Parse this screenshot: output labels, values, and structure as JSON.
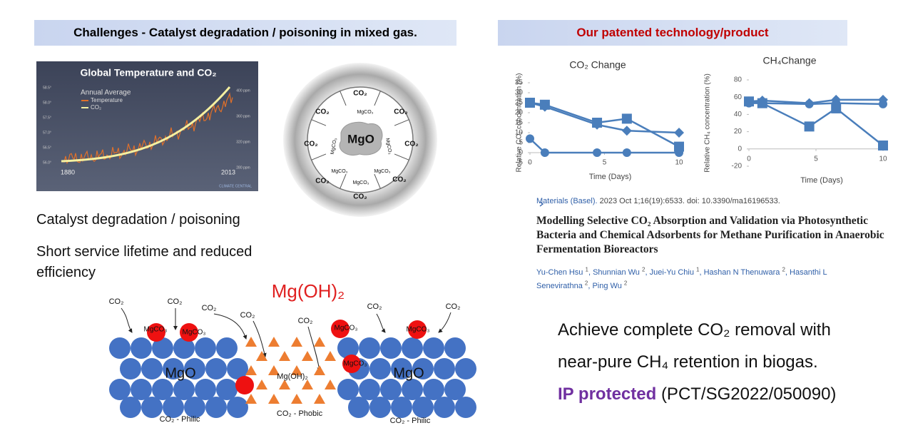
{
  "left": {
    "header": "Challenges - Catalyst degradation / poisoning in mixed gas.",
    "climate_image": {
      "title": "Global Temperature and CO₂",
      "legend_title": "Annual Average",
      "legend": [
        "Temperature",
        "CO₂"
      ],
      "x_labels": [
        "1880",
        "2013"
      ],
      "y_left_labels": [
        "58.5°",
        "58.0°",
        "57.5°",
        "57.0°",
        "56.5°",
        "56.0°"
      ],
      "y_right_labels": [
        "400 ppm",
        "360 ppm",
        "320 ppm",
        "280 ppm"
      ],
      "brand": "CLIMATE CENTRAL"
    },
    "mgo_diagram": {
      "core": "MgO",
      "co2_labels": [
        "CO₂",
        "CO₂",
        "CO₂",
        "CO₂",
        "CO₂",
        "CO₂",
        "CO₂",
        "CO₂"
      ],
      "mgco3_labels": [
        "MgCO₃",
        "MgCO₃",
        "MgCO₃",
        "MgCO₃",
        "MgCO₃",
        "MgCO₃"
      ]
    },
    "points": [
      "Catalyst degradation / poisoning",
      "Short service lifetime and reduced efficiency"
    ],
    "surface_diagram": {
      "title": "Mg(OH)₂",
      "co2_labels": [
        "CO₂",
        "CO₂",
        "CO₂",
        "CO₂",
        "CO₂",
        "CO₂",
        "CO₂"
      ],
      "mgco3_labels": [
        "MgCO₃",
        "MgCO₃",
        "MgCO₃",
        "MgCO₃",
        "MgCO₃"
      ],
      "mgo_labels": [
        "MgO",
        "MgO"
      ],
      "hydroxide_label": "Mg(OH)₂",
      "zone_labels": [
        "CO₂ - Philic",
        "CO₂ - Phobic",
        "CO₂ - Philic"
      ]
    }
  },
  "right": {
    "header": "Our patented technology/product",
    "citation": {
      "journal": "Materials (Basel).",
      "details": "2023 Oct 1;16(19):6533. doi: 10.3390/ma16196533.",
      "title": "Modelling Selective CO₂ Absorption and Validation via Photosynthetic Bacteria and Chemical Adsorbents for Methane Purification in Anaerobic Fermentation Bioreactors",
      "authors": [
        {
          "name": "Yu-Chen Hsu",
          "aff": "1"
        },
        {
          "name": "Shunnian Wu",
          "aff": "2"
        },
        {
          "name": "Juei-Yu Chiu",
          "aff": "1"
        },
        {
          "name": "Hashan N Thenuwara",
          "aff": "2"
        },
        {
          "name": "Hasanthi L Senevirathna",
          "aff": "2"
        },
        {
          "name": "Ping Wu",
          "aff": "2"
        }
      ]
    },
    "claim": {
      "lines": [
        "Achieve complete CO₂ removal with",
        "near-pure CH₄ retention in biogas."
      ],
      "ip_label": "IP protected",
      "ip_number": "(PCT/SG2022/050090)"
    }
  },
  "chart_data": [
    {
      "type": "line",
      "title": "CO₂ Change",
      "x_label": "Time (Days)",
      "y_label": "Relative CO₂ concentration (%)",
      "x": [
        0,
        1,
        4.5,
        6.5,
        10
      ],
      "xlim": [
        0,
        10
      ],
      "xticks": [
        0,
        5,
        10
      ],
      "ylim": [
        -5,
        35
      ],
      "yticks": [
        -5,
        0,
        5,
        10,
        15,
        20,
        25,
        30,
        35
      ],
      "series": [
        {
          "color": "#4a7ebb",
          "marker": "square",
          "values": [
            25,
            24,
            15,
            17,
            3
          ]
        },
        {
          "color": "#4a7ebb",
          "marker": "diamond",
          "values": [
            25,
            23,
            14,
            11,
            10
          ]
        },
        {
          "color": "#4a7ebb",
          "marker": "circle",
          "values": [
            7,
            0,
            0,
            0,
            0
          ]
        }
      ]
    },
    {
      "type": "line",
      "title": "CH₄Change",
      "x_label": "Time (Days)",
      "y_label": "Relative CH₄ concentration (%)",
      "x": [
        0,
        1,
        4.5,
        6.5,
        10
      ],
      "xlim": [
        0,
        10
      ],
      "xticks": [
        0,
        5,
        10
      ],
      "ylim": [
        -20,
        80
      ],
      "yticks": [
        -20,
        0,
        20,
        40,
        60,
        80
      ],
      "series": [
        {
          "color": "#4a7ebb",
          "marker": "diamond",
          "values": [
            55,
            56,
            53,
            57,
            57
          ]
        },
        {
          "color": "#4a7ebb",
          "marker": "circle",
          "values": [
            53,
            53,
            52,
            53,
            52
          ]
        },
        {
          "color": "#4a7ebb",
          "marker": "square",
          "values": [
            55,
            53,
            26,
            47,
            4
          ]
        }
      ]
    }
  ]
}
